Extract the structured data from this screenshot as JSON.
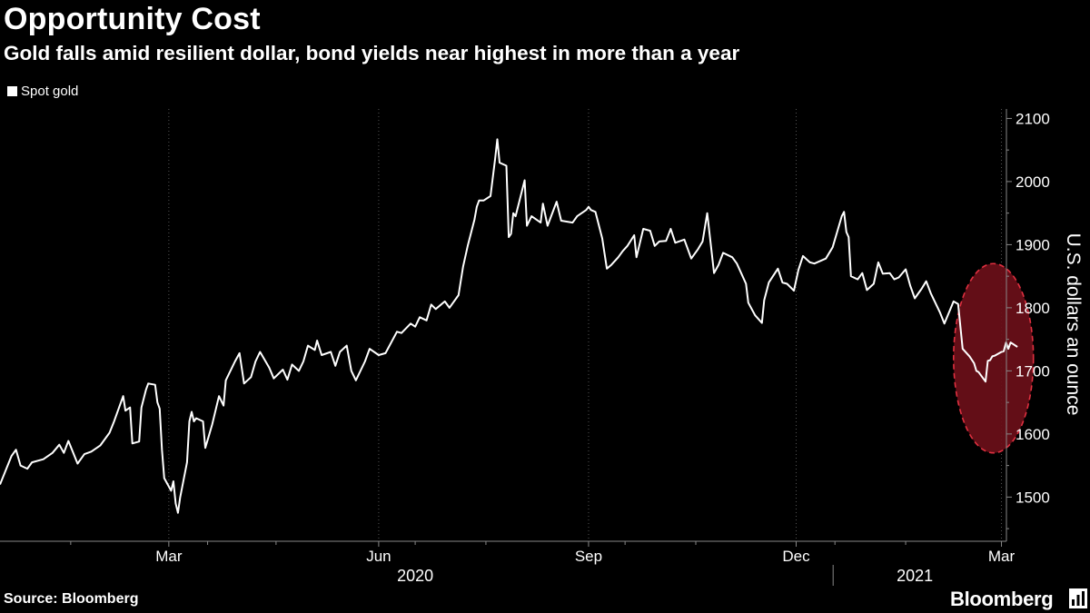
{
  "header": {
    "title": "Opportunity Cost",
    "subtitle": "Gold falls amid resilient dollar, bond yields near highest in more than a year"
  },
  "footer": {
    "source": "Source: Bloomberg",
    "brand": "Bloomberg"
  },
  "colors": {
    "background": "#000000",
    "line": "#ffffff",
    "highlight_fill": "#6b0f19",
    "highlight_stroke": "#e03040",
    "axis": "#888888",
    "grid": "#555555"
  },
  "icons": {
    "brand": "bloomberg-chart-icon"
  },
  "chart_data": {
    "type": "line",
    "title": "Opportunity Cost",
    "subtitle": "Gold falls amid resilient dollar, bond yields near highest in more than a year",
    "ylabel": "U.S. dollars an ounce",
    "xlabel": "",
    "ylim": [
      1430,
      2115
    ],
    "yticks": [
      1500,
      1600,
      1700,
      1800,
      1900,
      2000,
      2100
    ],
    "x_range": [
      "2020-01-01",
      "2021-03-12"
    ],
    "x_ticks": [
      {
        "date": "2020-03-15",
        "label": "Mar"
      },
      {
        "date": "2020-06-15",
        "label": "Jun"
      },
      {
        "date": "2020-09-15",
        "label": "Sep"
      },
      {
        "date": "2020-12-15",
        "label": "Dec"
      },
      {
        "date": "2021-03-15",
        "label": "Mar"
      }
    ],
    "x_minor_ticks": [
      "2020-02-01",
      "2020-04-01",
      "2020-05-01",
      "2020-07-01",
      "2020-08-01",
      "2020-10-01",
      "2020-11-01",
      "2021-01-01",
      "2021-02-01"
    ],
    "year_labels": [
      {
        "label": "2020",
        "center": "2020-07-01"
      },
      {
        "label": "2021",
        "center": "2021-02-05"
      }
    ],
    "year_divider": "2021-01-01",
    "gridlines": "vertical-dotted",
    "legend": {
      "placement": "top-left",
      "entries": [
        "Spot gold"
      ]
    },
    "series": [
      {
        "name": "Spot gold",
        "points": [
          [
            "2020-01-01",
            1520
          ],
          [
            "2020-01-06",
            1565
          ],
          [
            "2020-01-08",
            1575
          ],
          [
            "2020-01-10",
            1550
          ],
          [
            "2020-01-13",
            1545
          ],
          [
            "2020-01-15",
            1555
          ],
          [
            "2020-01-20",
            1560
          ],
          [
            "2020-01-24",
            1570
          ],
          [
            "2020-01-27",
            1583
          ],
          [
            "2020-01-29",
            1570
          ],
          [
            "2020-01-31",
            1589
          ],
          [
            "2020-02-04",
            1553
          ],
          [
            "2020-02-07",
            1568
          ],
          [
            "2020-02-10",
            1572
          ],
          [
            "2020-02-14",
            1582
          ],
          [
            "2020-02-18",
            1602
          ],
          [
            "2020-02-20",
            1620
          ],
          [
            "2020-02-24",
            1660
          ],
          [
            "2020-02-25",
            1637
          ],
          [
            "2020-02-27",
            1642
          ],
          [
            "2020-02-28",
            1585
          ],
          [
            "2020-03-02",
            1588
          ],
          [
            "2020-03-03",
            1642
          ],
          [
            "2020-03-05",
            1670
          ],
          [
            "2020-03-06",
            1680
          ],
          [
            "2020-03-09",
            1678
          ],
          [
            "2020-03-10",
            1650
          ],
          [
            "2020-03-11",
            1640
          ],
          [
            "2020-03-12",
            1575
          ],
          [
            "2020-03-13",
            1530
          ],
          [
            "2020-03-16",
            1510
          ],
          [
            "2020-03-17",
            1525
          ],
          [
            "2020-03-18",
            1490
          ],
          [
            "2020-03-19",
            1475
          ],
          [
            "2020-03-20",
            1500
          ],
          [
            "2020-03-23",
            1555
          ],
          [
            "2020-03-24",
            1620
          ],
          [
            "2020-03-25",
            1635
          ],
          [
            "2020-03-26",
            1620
          ],
          [
            "2020-03-27",
            1625
          ],
          [
            "2020-03-30",
            1620
          ],
          [
            "2020-03-31",
            1578
          ],
          [
            "2020-04-01",
            1590
          ],
          [
            "2020-04-03",
            1615
          ],
          [
            "2020-04-06",
            1660
          ],
          [
            "2020-04-08",
            1645
          ],
          [
            "2020-04-09",
            1685
          ],
          [
            "2020-04-13",
            1715
          ],
          [
            "2020-04-15",
            1728
          ],
          [
            "2020-04-17",
            1680
          ],
          [
            "2020-04-20",
            1690
          ],
          [
            "2020-04-22",
            1715
          ],
          [
            "2020-04-24",
            1730
          ],
          [
            "2020-04-28",
            1705
          ],
          [
            "2020-04-30",
            1688
          ],
          [
            "2020-05-04",
            1702
          ],
          [
            "2020-05-06",
            1686
          ],
          [
            "2020-05-08",
            1710
          ],
          [
            "2020-05-11",
            1700
          ],
          [
            "2020-05-13",
            1715
          ],
          [
            "2020-05-15",
            1740
          ],
          [
            "2020-05-18",
            1733
          ],
          [
            "2020-05-19",
            1748
          ],
          [
            "2020-05-21",
            1725
          ],
          [
            "2020-05-25",
            1730
          ],
          [
            "2020-05-27",
            1708
          ],
          [
            "2020-05-29",
            1730
          ],
          [
            "2020-06-01",
            1740
          ],
          [
            "2020-06-03",
            1700
          ],
          [
            "2020-06-05",
            1685
          ],
          [
            "2020-06-09",
            1715
          ],
          [
            "2020-06-11",
            1735
          ],
          [
            "2020-06-15",
            1725
          ],
          [
            "2020-06-18",
            1728
          ],
          [
            "2020-06-23",
            1762
          ],
          [
            "2020-06-25",
            1760
          ],
          [
            "2020-06-29",
            1775
          ],
          [
            "2020-07-01",
            1770
          ],
          [
            "2020-07-03",
            1785
          ],
          [
            "2020-07-06",
            1780
          ],
          [
            "2020-07-08",
            1805
          ],
          [
            "2020-07-10",
            1798
          ],
          [
            "2020-07-14",
            1810
          ],
          [
            "2020-07-16",
            1800
          ],
          [
            "2020-07-20",
            1820
          ],
          [
            "2020-07-22",
            1865
          ],
          [
            "2020-07-24",
            1898
          ],
          [
            "2020-07-27",
            1940
          ],
          [
            "2020-07-28",
            1960
          ],
          [
            "2020-07-29",
            1970
          ],
          [
            "2020-07-31",
            1970
          ],
          [
            "2020-08-03",
            1977
          ],
          [
            "2020-08-05",
            2035
          ],
          [
            "2020-08-06",
            2067
          ],
          [
            "2020-08-07",
            2030
          ],
          [
            "2020-08-10",
            2025
          ],
          [
            "2020-08-11",
            1912
          ],
          [
            "2020-08-12",
            1917
          ],
          [
            "2020-08-13",
            1950
          ],
          [
            "2020-08-14",
            1945
          ],
          [
            "2020-08-18",
            2002
          ],
          [
            "2020-08-19",
            1930
          ],
          [
            "2020-08-21",
            1945
          ],
          [
            "2020-08-25",
            1935
          ],
          [
            "2020-08-26",
            1965
          ],
          [
            "2020-08-28",
            1930
          ],
          [
            "2020-09-01",
            1968
          ],
          [
            "2020-09-03",
            1938
          ],
          [
            "2020-09-08",
            1935
          ],
          [
            "2020-09-10",
            1945
          ],
          [
            "2020-09-14",
            1955
          ],
          [
            "2020-09-15",
            1960
          ],
          [
            "2020-09-16",
            1955
          ],
          [
            "2020-09-18",
            1952
          ],
          [
            "2020-09-21",
            1910
          ],
          [
            "2020-09-23",
            1862
          ],
          [
            "2020-09-25",
            1868
          ],
          [
            "2020-09-28",
            1880
          ],
          [
            "2020-09-30",
            1890
          ],
          [
            "2020-10-02",
            1898
          ],
          [
            "2020-10-05",
            1915
          ],
          [
            "2020-10-06",
            1880
          ],
          [
            "2020-10-09",
            1925
          ],
          [
            "2020-10-12",
            1922
          ],
          [
            "2020-10-14",
            1898
          ],
          [
            "2020-10-16",
            1905
          ],
          [
            "2020-10-19",
            1906
          ],
          [
            "2020-10-21",
            1925
          ],
          [
            "2020-10-23",
            1903
          ],
          [
            "2020-10-27",
            1908
          ],
          [
            "2020-10-30",
            1878
          ],
          [
            "2020-11-02",
            1893
          ],
          [
            "2020-11-04",
            1905
          ],
          [
            "2020-11-06",
            1950
          ],
          [
            "2020-11-09",
            1855
          ],
          [
            "2020-11-11",
            1868
          ],
          [
            "2020-11-13",
            1887
          ],
          [
            "2020-11-17",
            1880
          ],
          [
            "2020-11-19",
            1870
          ],
          [
            "2020-11-23",
            1838
          ],
          [
            "2020-11-24",
            1808
          ],
          [
            "2020-11-27",
            1788
          ],
          [
            "2020-11-30",
            1776
          ],
          [
            "2020-12-01",
            1812
          ],
          [
            "2020-12-03",
            1840
          ],
          [
            "2020-12-07",
            1862
          ],
          [
            "2020-12-09",
            1840
          ],
          [
            "2020-12-11",
            1838
          ],
          [
            "2020-12-14",
            1827
          ],
          [
            "2020-12-16",
            1860
          ],
          [
            "2020-12-18",
            1882
          ],
          [
            "2020-12-21",
            1872
          ],
          [
            "2020-12-23",
            1870
          ],
          [
            "2020-12-28",
            1878
          ],
          [
            "2020-12-31",
            1896
          ],
          [
            "2021-01-04",
            1945
          ],
          [
            "2021-01-05",
            1952
          ],
          [
            "2021-01-06",
            1920
          ],
          [
            "2021-01-07",
            1912
          ],
          [
            "2021-01-08",
            1850
          ],
          [
            "2021-01-11",
            1845
          ],
          [
            "2021-01-13",
            1855
          ],
          [
            "2021-01-15",
            1828
          ],
          [
            "2021-01-18",
            1838
          ],
          [
            "2021-01-20",
            1872
          ],
          [
            "2021-01-22",
            1854
          ],
          [
            "2021-01-25",
            1855
          ],
          [
            "2021-01-27",
            1845
          ],
          [
            "2021-01-29",
            1848
          ],
          [
            "2021-02-01",
            1861
          ],
          [
            "2021-02-03",
            1835
          ],
          [
            "2021-02-05",
            1815
          ],
          [
            "2021-02-08",
            1830
          ],
          [
            "2021-02-10",
            1842
          ],
          [
            "2021-02-12",
            1823
          ],
          [
            "2021-02-16",
            1793
          ],
          [
            "2021-02-18",
            1775
          ],
          [
            "2021-02-22",
            1810
          ],
          [
            "2021-02-24",
            1806
          ],
          [
            "2021-02-26",
            1735
          ],
          [
            "2021-03-01",
            1723
          ],
          [
            "2021-03-03",
            1712
          ],
          [
            "2021-03-04",
            1700
          ],
          [
            "2021-03-05",
            1698
          ],
          [
            "2021-03-08",
            1683
          ],
          [
            "2021-03-09",
            1716
          ],
          [
            "2021-03-10",
            1717
          ],
          [
            "2021-03-11",
            1723
          ],
          [
            "2021-03-12",
            1724
          ],
          [
            "2021-03-15",
            1730
          ],
          [
            "2021-03-16",
            1731
          ],
          [
            "2021-03-17",
            1745
          ],
          [
            "2021-03-18",
            1735
          ],
          [
            "2021-03-19",
            1745
          ],
          [
            "2021-03-22",
            1738
          ]
        ]
      }
    ],
    "highlight": {
      "shape": "ellipse",
      "x_range": [
        "2021-02-22",
        "2021-03-29"
      ],
      "y_range": [
        1570,
        1870
      ]
    }
  }
}
